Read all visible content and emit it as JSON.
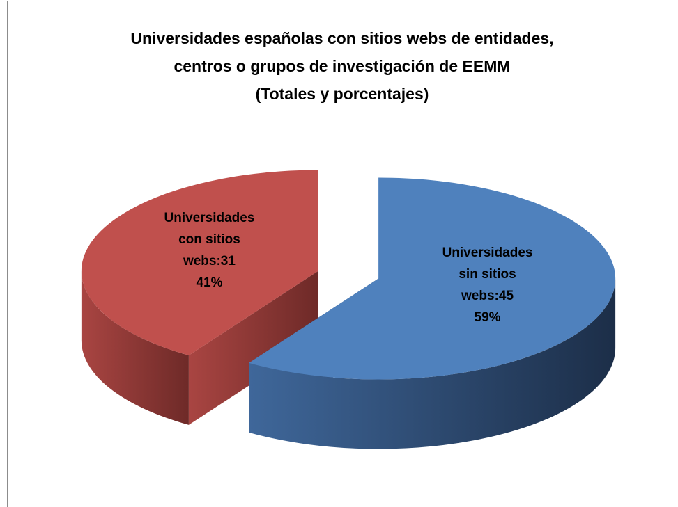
{
  "chart_data": {
    "type": "pie",
    "title": [
      "Universidades españolas con sitios webs de entidades,",
      "centros o grupos de investigación de EEMM",
      "(Totales y porcentajes)"
    ],
    "categories": [
      "Universidades sin sitios webs:45",
      "Universidades con sitios webs:31"
    ],
    "values": [
      45,
      31
    ],
    "percentages": [
      59,
      41
    ],
    "percent_labels": [
      "59%",
      "41%"
    ],
    "colors": [
      "#4f81bd",
      "#c0504d"
    ]
  }
}
